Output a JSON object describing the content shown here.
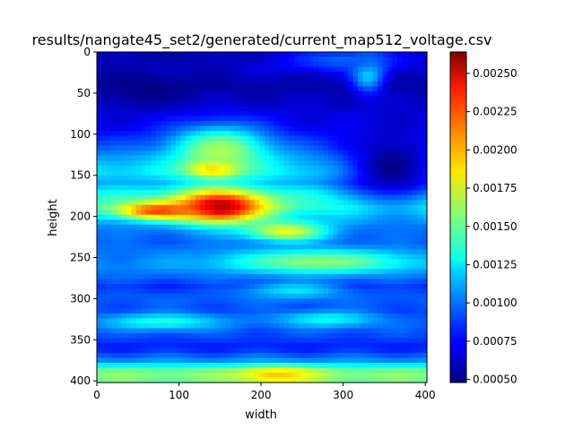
{
  "chart_data": {
    "type": "heatmap",
    "title": "results/nangate45_set2/generated/current_map512_voltage.csv",
    "xlabel": "width",
    "ylabel": "height",
    "xlim": [
      0,
      402
    ],
    "ylim": [
      402,
      0
    ],
    "xticks": [
      "0",
      "100",
      "200",
      "300",
      "400"
    ],
    "yticks": [
      "0",
      "50",
      "100",
      "150",
      "200",
      "250",
      "300",
      "350",
      "400"
    ],
    "colormap": "jet",
    "vmin": 0.00048,
    "vmax": 0.00264,
    "colorbar_ticks": [
      "0.00050",
      "0.00075",
      "0.00100",
      "0.00125",
      "0.00150",
      "0.00175",
      "0.00200",
      "0.00225",
      "0.00250"
    ],
    "grid": false,
    "row_profile": [
      [
        0,
        0.0006
      ],
      [
        10,
        0.00058
      ],
      [
        20,
        0.00062
      ],
      [
        40,
        0.00056
      ],
      [
        60,
        0.00062
      ],
      [
        75,
        0.00068
      ],
      [
        90,
        0.00072
      ],
      [
        100,
        0.00078
      ],
      [
        115,
        0.0009
      ],
      [
        130,
        0.0011
      ],
      [
        145,
        0.00125
      ],
      [
        160,
        0.0011
      ],
      [
        175,
        0.00135
      ],
      [
        190,
        0.0014
      ],
      [
        200,
        0.0012
      ],
      [
        215,
        0.001
      ],
      [
        230,
        0.00095
      ],
      [
        245,
        0.001
      ],
      [
        260,
        0.00105
      ],
      [
        275,
        0.00095
      ],
      [
        285,
        0.00085
      ],
      [
        300,
        0.00095
      ],
      [
        315,
        0.0009
      ],
      [
        330,
        0.00095
      ],
      [
        345,
        0.0009
      ],
      [
        360,
        0.0008
      ],
      [
        375,
        0.00105
      ],
      [
        390,
        0.0016
      ],
      [
        402,
        0.0015
      ]
    ],
    "hotspots": [
      {
        "x": 150,
        "y": 188,
        "radius_x": 55,
        "radius_y": 20,
        "value": 0.00255
      },
      {
        "x": 75,
        "y": 193,
        "radius_x": 50,
        "radius_y": 10,
        "value": 0.00225
      },
      {
        "x": 142,
        "y": 142,
        "radius_x": 30,
        "radius_y": 10,
        "value": 0.00225
      },
      {
        "x": 150,
        "y": 120,
        "radius_x": 60,
        "radius_y": 30,
        "value": 0.00165
      },
      {
        "x": 230,
        "y": 218,
        "radius_x": 50,
        "radius_y": 12,
        "value": 0.0018
      },
      {
        "x": 270,
        "y": 255,
        "radius_x": 110,
        "radius_y": 14,
        "value": 0.0016
      },
      {
        "x": 220,
        "y": 393,
        "radius_x": 50,
        "radius_y": 10,
        "value": 0.00195
      },
      {
        "x": 80,
        "y": 328,
        "radius_x": 70,
        "radius_y": 10,
        "value": 0.00135
      },
      {
        "x": 280,
        "y": 325,
        "radius_x": 60,
        "radius_y": 10,
        "value": 0.0013
      },
      {
        "x": 240,
        "y": 290,
        "radius_x": 60,
        "radius_y": 10,
        "value": 0.00125
      },
      {
        "x": 330,
        "y": 25,
        "radius_x": 20,
        "radius_y": 25,
        "value": 0.00125
      },
      {
        "x": 300,
        "y": 10,
        "radius_x": 80,
        "radius_y": 15,
        "value": 0.00095
      },
      {
        "x": 360,
        "y": 140,
        "radius_x": 60,
        "radius_y": 45,
        "value": 0.0005
      },
      {
        "x": 60,
        "y": 45,
        "radius_x": 60,
        "radius_y": 20,
        "value": 0.0005
      }
    ]
  }
}
